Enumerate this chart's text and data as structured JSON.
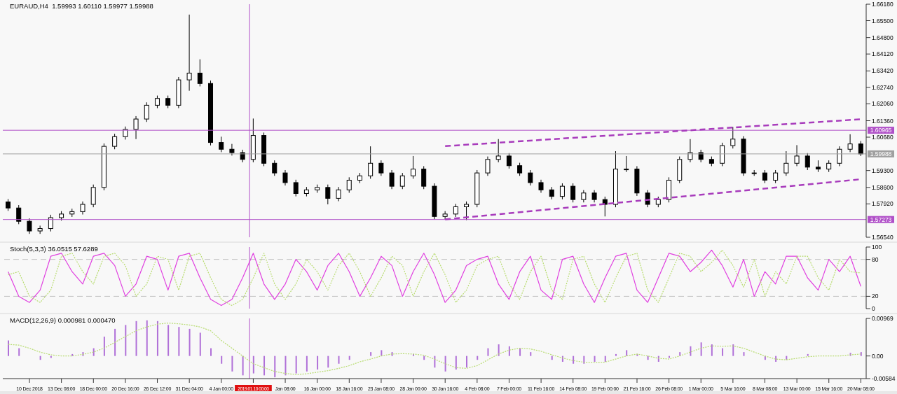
{
  "chart_data": [
    {
      "type": "candlestick",
      "title": "EURAUD,H4  1.59993 1.60110 1.59977 1.59988",
      "tick_labels": "y",
      "categories": [
        null,
        null,
        "10 Dec 2018",
        null,
        null,
        "13 Dec 08:00",
        null,
        null,
        "18 Dec 00:00",
        null,
        null,
        "20 Dec 16:00",
        null,
        null,
        "26 Dec 12:00",
        null,
        null,
        "31 Dec 04:00",
        null,
        null,
        "4 Jan 00:00",
        null,
        null,
        "2019.01.10 00:00",
        null,
        null,
        "Jan 08:00",
        null,
        null,
        "16 Jan 00:00",
        null,
        null,
        "18 Jan 16:00",
        null,
        null,
        "23 Jan 08:00",
        null,
        null,
        "28 Jan 00:00",
        null,
        null,
        "30 Jan 16:00",
        null,
        null,
        "4 Feb 08:00",
        null,
        null,
        "7 Feb 00:00",
        null,
        null,
        "11 Feb 16:00",
        null,
        null,
        "14 Feb 08:00",
        null,
        null,
        "19 Feb 00:00",
        null,
        null,
        "21 Feb 16:00",
        null,
        null,
        "26 Feb 08:00",
        null,
        null,
        "1 Mar 00:00",
        null,
        null,
        "5 Mar 16:00",
        null,
        null,
        "8 Mar 08:00",
        null,
        null,
        "13 Mar 00:00",
        null,
        null,
        "15 Mar 16:00",
        null,
        null,
        "20 Mar 08:00"
      ],
      "ohlc": [
        [
          1.58,
          1.5812,
          1.5763,
          1.5775
        ],
        [
          1.5775,
          1.5787,
          1.5708,
          1.572
        ],
        [
          1.572,
          1.5732,
          1.5668,
          1.568
        ],
        [
          1.568,
          1.5702,
          1.5668,
          1.569
        ],
        [
          1.569,
          1.5747,
          1.5678,
          1.5735
        ],
        [
          1.5735,
          1.5762,
          1.5723,
          1.575
        ],
        [
          1.575,
          1.5772,
          1.5738,
          1.576
        ],
        [
          1.576,
          1.5802,
          1.5748,
          1.579
        ],
        [
          1.579,
          1.5872,
          1.5778,
          1.586
        ],
        [
          1.586,
          1.6042,
          1.5848,
          1.603
        ],
        [
          1.603,
          1.6082,
          1.6018,
          1.607
        ],
        [
          1.607,
          1.6112,
          1.6058,
          1.61
        ],
        [
          1.61,
          1.6155,
          1.606,
          1.6143
        ],
        [
          1.6143,
          1.6212,
          1.6131,
          1.62
        ],
        [
          1.62,
          1.624,
          1.6188,
          1.6228
        ],
        [
          1.6228,
          1.624,
          1.6188,
          1.62
        ],
        [
          1.62,
          1.6317,
          1.6188,
          1.6305
        ],
        [
          1.6305,
          1.6575,
          1.626,
          1.6333
        ],
        [
          1.6333,
          1.639,
          1.6278,
          1.629
        ],
        [
          1.629,
          1.6302,
          1.6034,
          1.6046
        ],
        [
          1.6046,
          1.607,
          1.6006,
          1.6018
        ],
        [
          1.6018,
          1.604,
          1.5992,
          1.6004
        ],
        [
          1.6004,
          1.6016,
          1.5964,
          1.5976
        ],
        [
          1.5976,
          1.6145,
          1.5964,
          1.6075
        ],
        [
          1.6075,
          1.6087,
          1.5948,
          1.596
        ],
        [
          1.596,
          1.5972,
          1.5908,
          1.592
        ],
        [
          1.592,
          1.5932,
          1.5868,
          1.588
        ],
        [
          1.588,
          1.5892,
          1.5823,
          1.5835
        ],
        [
          1.5835,
          1.5862,
          1.5823,
          1.585
        ],
        [
          1.585,
          1.5872,
          1.5838,
          1.586
        ],
        [
          1.586,
          1.5872,
          1.579,
          1.5815
        ],
        [
          1.5815,
          1.5862,
          1.5803,
          1.585
        ],
        [
          1.585,
          1.5902,
          1.5838,
          1.589
        ],
        [
          1.589,
          1.592,
          1.5878,
          1.5908
        ],
        [
          1.5908,
          1.603,
          1.5896,
          1.596
        ],
        [
          1.596,
          1.5972,
          1.5908,
          1.592
        ],
        [
          1.592,
          1.5932,
          1.5853,
          1.5865
        ],
        [
          1.5865,
          1.592,
          1.5853,
          1.5908
        ],
        [
          1.5908,
          1.599,
          1.5896,
          1.5936
        ],
        [
          1.5936,
          1.5948,
          1.5853,
          1.5865
        ],
        [
          1.5865,
          1.5877,
          1.5728,
          1.574
        ],
        [
          1.574,
          1.5762,
          1.5728,
          1.575
        ],
        [
          1.575,
          1.5792,
          1.5738,
          1.578
        ],
        [
          1.578,
          1.5802,
          1.5725,
          1.579
        ],
        [
          1.579,
          1.5932,
          1.5778,
          1.592
        ],
        [
          1.592,
          1.5988,
          1.5908,
          1.5976
        ],
        [
          1.5976,
          1.606,
          1.5964,
          1.599
        ],
        [
          1.599,
          1.6002,
          1.5938,
          1.595
        ],
        [
          1.595,
          1.5962,
          1.5908,
          1.592
        ],
        [
          1.592,
          1.5932,
          1.5868,
          1.588
        ],
        [
          1.588,
          1.5892,
          1.5838,
          1.585
        ],
        [
          1.585,
          1.5862,
          1.5811,
          1.5823
        ],
        [
          1.5823,
          1.5877,
          1.5811,
          1.5865
        ],
        [
          1.5865,
          1.5877,
          1.5798,
          1.581
        ],
        [
          1.581,
          1.5849,
          1.5798,
          1.5837
        ],
        [
          1.5837,
          1.5849,
          1.5798,
          1.581
        ],
        [
          1.581,
          1.5822,
          1.574,
          1.579
        ],
        [
          1.579,
          1.601,
          1.5778,
          1.5936
        ],
        [
          1.5936,
          1.599,
          1.5924,
          1.5936
        ],
        [
          1.5936,
          1.5948,
          1.5825,
          1.5837
        ],
        [
          1.5837,
          1.5849,
          1.5778,
          1.579
        ],
        [
          1.579,
          1.5822,
          1.5778,
          1.581
        ],
        [
          1.581,
          1.5902,
          1.5798,
          1.589
        ],
        [
          1.589,
          1.5988,
          1.5878,
          1.5976
        ],
        [
          1.5976,
          1.606,
          1.5964,
          1.6004
        ],
        [
          1.6004,
          1.6016,
          1.5964,
          1.5976
        ],
        [
          1.5976,
          1.5988,
          1.5948,
          1.596
        ],
        [
          1.596,
          1.6045,
          1.5948,
          1.6033
        ],
        [
          1.6033,
          1.611,
          1.6021,
          1.606
        ],
        [
          1.606,
          1.6072,
          1.5908,
          1.592
        ],
        [
          1.592,
          1.5932,
          1.5908,
          1.592
        ],
        [
          1.592,
          1.5932,
          1.5878,
          1.589
        ],
        [
          1.589,
          1.5932,
          1.5878,
          1.592
        ],
        [
          1.592,
          1.601,
          1.5908,
          1.596
        ],
        [
          1.596,
          1.6035,
          1.5948,
          1.599
        ],
        [
          1.599,
          1.6002,
          1.5932,
          1.5944
        ],
        [
          1.5944,
          1.5972,
          1.5924,
          1.5936
        ],
        [
          1.5936,
          1.5972,
          1.5924,
          1.596
        ],
        [
          1.596,
          1.603,
          1.5948,
          1.6018
        ],
        [
          1.6018,
          1.608,
          1.6006,
          1.604
        ],
        [
          1.604,
          1.6052,
          1.599,
          1.59988
        ]
      ],
      "series": [
        {
          "type": "line",
          "color": "#a83cbc",
          "line_style": "dashed",
          "values": [
            null,
            null,
            null,
            null,
            null,
            null,
            null,
            null,
            null,
            null,
            null,
            null,
            null,
            null,
            null,
            null,
            null,
            null,
            null,
            null,
            null,
            null,
            null,
            null,
            null,
            null,
            null,
            null,
            null,
            null,
            null,
            null,
            null,
            null,
            null,
            null,
            null,
            null,
            null,
            null,
            null,
            1.6031,
            null,
            null,
            null,
            null,
            null,
            null,
            null,
            null,
            null,
            null,
            null,
            null,
            null,
            null,
            null,
            null,
            null,
            null,
            null,
            null,
            null,
            null,
            null,
            null,
            null,
            null,
            null,
            null,
            null,
            null,
            null,
            null,
            null,
            null,
            null,
            null,
            null,
            null,
            1.6142
          ]
        },
        {
          "type": "line",
          "color": "#a83cbc",
          "line_style": "dashed",
          "values": [
            null,
            null,
            null,
            null,
            null,
            null,
            null,
            null,
            null,
            null,
            null,
            null,
            null,
            null,
            null,
            null,
            null,
            null,
            null,
            null,
            null,
            null,
            null,
            null,
            null,
            null,
            null,
            null,
            null,
            null,
            null,
            null,
            null,
            null,
            null,
            null,
            null,
            null,
            null,
            null,
            null,
            1.5728,
            null,
            null,
            null,
            null,
            null,
            null,
            null,
            null,
            null,
            null,
            null,
            null,
            null,
            null,
            null,
            null,
            null,
            null,
            null,
            null,
            null,
            null,
            null,
            null,
            null,
            null,
            null,
            null,
            null,
            null,
            null,
            null,
            null,
            null,
            null,
            null,
            null,
            null,
            1.5894
          ]
        }
      ],
      "ylim": [
        1.5654,
        1.6618
      ],
      "yticks": [
        {
          "value": 1.5654,
          "label": "1.56540"
        },
        {
          "value": 1.5792,
          "label": "1.57920"
        },
        {
          "value": 1.586,
          "label": "1.58600"
        },
        {
          "value": 1.593,
          "label": "1.59300"
        },
        {
          "value": 1.6068,
          "label": "1.60680"
        },
        {
          "value": 1.6136,
          "label": "1.61360"
        },
        {
          "value": 1.6206,
          "label": "1.62060"
        },
        {
          "value": 1.6274,
          "label": "1.62740"
        },
        {
          "value": 1.6342,
          "label": "1.63420"
        },
        {
          "value": 1.6412,
          "label": "1.64120"
        },
        {
          "value": 1.648,
          "label": "1.64800"
        },
        {
          "value": 1.655,
          "label": "1.65500"
        },
        {
          "value": 1.6618,
          "label": "1.66180"
        }
      ],
      "ref_lines": [
        {
          "axis": "y",
          "value": 1.60965,
          "label": "1.60965",
          "color": "#b050c8"
        },
        {
          "axis": "y",
          "value": 1.59988,
          "label": "1.59988",
          "color": "#a0a0a0"
        },
        {
          "axis": "y",
          "value": 1.57273,
          "label": "1.57273",
          "color": "#b050c8"
        },
        {
          "axis": "x",
          "value": "2019.01.10 00:00",
          "color": "#b050c8"
        }
      ]
    },
    {
      "type": "line",
      "title": "Stoch(5,3,3) 36.0515 57.6289",
      "tick_labels": "y",
      "categories": [
        null,
        null,
        "10 Dec 2018",
        null,
        null,
        "13 Dec 08:00",
        null,
        null,
        "18 Dec 00:00",
        null,
        null,
        "20 Dec 16:00",
        null,
        null,
        "26 Dec 12:00",
        null,
        null,
        "31 Dec 04:00",
        null,
        null,
        "4 Jan 00:00",
        null,
        null,
        "2019.01.10 00:00",
        null,
        null,
        "Jan 08:00",
        null,
        null,
        "16 Jan 00:00",
        null,
        null,
        "18 Jan 16:00",
        null,
        null,
        "23 Jan 08:00",
        null,
        null,
        "28 Jan 00:00",
        null,
        null,
        "30 Jan 16:00",
        null,
        null,
        "4 Feb 08:00",
        null,
        null,
        "7 Feb 00:00",
        null,
        null,
        "11 Feb 16:00",
        null,
        null,
        "14 Feb 08:00",
        null,
        null,
        "19 Feb 00:00",
        null,
        null,
        "21 Feb 16:00",
        null,
        null,
        "26 Feb 08:00",
        null,
        null,
        "1 Mar 00:00",
        null,
        null,
        "5 Mar 16:00",
        null,
        null,
        "8 Mar 08:00",
        null,
        null,
        "13 Mar 00:00",
        null,
        null,
        "15 Mar 16:00",
        null,
        null,
        "20 Mar 08:00"
      ],
      "series": [
        {
          "color": "#e040e0",
          "line_style": "solid",
          "values": [
            60,
            20,
            10,
            30,
            85,
            90,
            60,
            40,
            85,
            90,
            70,
            20,
            40,
            85,
            80,
            30,
            85,
            90,
            50,
            15,
            5,
            15,
            50,
            90,
            40,
            15,
            40,
            80,
            60,
            30,
            70,
            90,
            60,
            20,
            50,
            85,
            70,
            20,
            60,
            90,
            55,
            10,
            30,
            70,
            80,
            85,
            40,
            15,
            60,
            85,
            30,
            15,
            80,
            85,
            40,
            10,
            50,
            85,
            90,
            30,
            10,
            50,
            90,
            85,
            60,
            75,
            95,
            70,
            35,
            80,
            20,
            60,
            40,
            85,
            85,
            50,
            30,
            80,
            60,
            85,
            36
          ]
        },
        {
          "color": "#b8dc70",
          "line_style": "dotted",
          "values": [
            55,
            60,
            20,
            10,
            30,
            85,
            90,
            60,
            40,
            85,
            90,
            70,
            20,
            40,
            85,
            80,
            30,
            85,
            90,
            50,
            15,
            5,
            15,
            50,
            90,
            40,
            15,
            40,
            80,
            60,
            30,
            70,
            90,
            60,
            20,
            50,
            85,
            70,
            20,
            60,
            90,
            55,
            10,
            30,
            70,
            80,
            85,
            40,
            15,
            60,
            85,
            30,
            15,
            80,
            85,
            40,
            10,
            50,
            85,
            90,
            30,
            10,
            50,
            90,
            85,
            60,
            75,
            95,
            70,
            35,
            80,
            20,
            60,
            40,
            85,
            85,
            50,
            30,
            80,
            60,
            58
          ]
        }
      ],
      "ylim": [
        0,
        100
      ],
      "yticks": [
        0,
        20,
        80,
        100
      ],
      "ref_lines": [
        {
          "axis": "y",
          "value": 80,
          "color": "#c0c0c0",
          "line_style": "dashed"
        },
        {
          "axis": "y",
          "value": 20,
          "color": "#c0c0c0",
          "line_style": "dashed"
        },
        {
          "axis": "x",
          "value": "2019.01.10 00:00",
          "color": "#b050c8"
        }
      ]
    },
    {
      "type": "bar",
      "title": "MACD(12,26,9) 0.000981 0.000470",
      "categories": [
        null,
        null,
        "10 Dec 2018",
        null,
        null,
        "13 Dec 08:00",
        null,
        null,
        "18 Dec 00:00",
        null,
        null,
        "20 Dec 16:00",
        null,
        null,
        "26 Dec 12:00",
        null,
        null,
        "31 Dec 04:00",
        null,
        null,
        "4 Jan 00:00",
        null,
        null,
        "2019.01.10 00:00",
        null,
        null,
        "Jan 08:00",
        null,
        null,
        "16 Jan 00:00",
        null,
        null,
        "18 Jan 16:00",
        null,
        null,
        "23 Jan 08:00",
        null,
        null,
        "28 Jan 00:00",
        null,
        null,
        "30 Jan 16:00",
        null,
        null,
        "4 Feb 08:00",
        null,
        null,
        "7 Feb 00:00",
        null,
        null,
        "11 Feb 16:00",
        null,
        null,
        "14 Feb 08:00",
        null,
        null,
        "19 Feb 00:00",
        null,
        null,
        "21 Feb 16:00",
        null,
        null,
        "26 Feb 08:00",
        null,
        null,
        "1 Mar 00:00",
        null,
        null,
        "5 Mar 16:00",
        null,
        null,
        "8 Mar 08:00",
        null,
        null,
        "13 Mar 00:00",
        null,
        null,
        "15 Mar 16:00",
        null,
        null,
        "20 Mar 08:00"
      ],
      "series": [
        {
          "type": "bar",
          "color": "#b070d8",
          "values": [
            0.004,
            0.002,
            0.0,
            -0.001,
            -0.0005,
            0.0,
            0.0005,
            0.001,
            0.002,
            0.005,
            0.007,
            0.008,
            0.009,
            0.0092,
            0.009,
            0.008,
            0.0075,
            0.007,
            0.006,
            0.002,
            -0.002,
            -0.004,
            -0.005,
            -0.0045,
            -0.005,
            -0.0055,
            -0.005,
            -0.0045,
            -0.004,
            -0.0035,
            -0.003,
            -0.002,
            -0.001,
            0.0,
            0.001,
            0.0015,
            0.001,
            0.0,
            0.0005,
            -0.001,
            -0.003,
            -0.004,
            -0.0035,
            -0.003,
            -0.001,
            0.002,
            0.003,
            0.0025,
            0.002,
            0.001,
            0.0,
            -0.001,
            -0.0015,
            -0.002,
            -0.002,
            -0.0015,
            -0.0015,
            0.0005,
            0.0015,
            0.0005,
            -0.001,
            -0.0015,
            -0.0005,
            0.001,
            0.0025,
            0.0035,
            0.003,
            0.002,
            0.003,
            0.001,
            0.0,
            -0.001,
            -0.0015,
            -0.001,
            0.0,
            0.0005,
            0.0,
            0.0,
            0.0,
            0.0008,
            0.001
          ]
        },
        {
          "type": "line",
          "color": "#b8dc70",
          "line_style": "dotted",
          "values": [
            0.003,
            0.0028,
            0.002,
            0.001,
            0.0003,
            0.0,
            0.0,
            0.0004,
            0.001,
            0.002,
            0.0035,
            0.005,
            0.0065,
            0.0075,
            0.0082,
            0.0085,
            0.0083,
            0.008,
            0.0075,
            0.0065,
            0.004,
            0.002,
            0.0,
            -0.002,
            -0.003,
            -0.004,
            -0.0045,
            -0.0048,
            -0.0046,
            -0.0042,
            -0.0038,
            -0.0032,
            -0.0025,
            -0.0015,
            -0.0008,
            0.0,
            0.0005,
            0.0006,
            0.0005,
            0.0002,
            -0.0008,
            -0.002,
            -0.003,
            -0.0032,
            -0.0025,
            -0.001,
            0.0005,
            0.0015,
            0.002,
            0.0018,
            0.0012,
            0.0003,
            -0.0005,
            -0.0012,
            -0.0016,
            -0.0017,
            -0.0016,
            -0.0008,
            0.0,
            0.0005,
            0.0,
            -0.0006,
            -0.0008,
            0.0,
            0.001,
            0.002,
            0.0026,
            0.0025,
            0.0026,
            0.002,
            0.001,
            0.0,
            -0.0008,
            -0.001,
            -0.0006,
            -0.0002,
            0.0,
            0.0,
            0.0,
            0.0003,
            0.0005
          ]
        }
      ],
      "ylim": [
        -0.00584,
        0.00969
      ],
      "yticks": [
        0.00969,
        {
          "value": 0,
          "label": "0.00"
        },
        -0.00584
      ],
      "ref_lines": [
        {
          "axis": "x",
          "value": "2019.01.10 00:00",
          "color": "#b050c8"
        }
      ]
    }
  ]
}
